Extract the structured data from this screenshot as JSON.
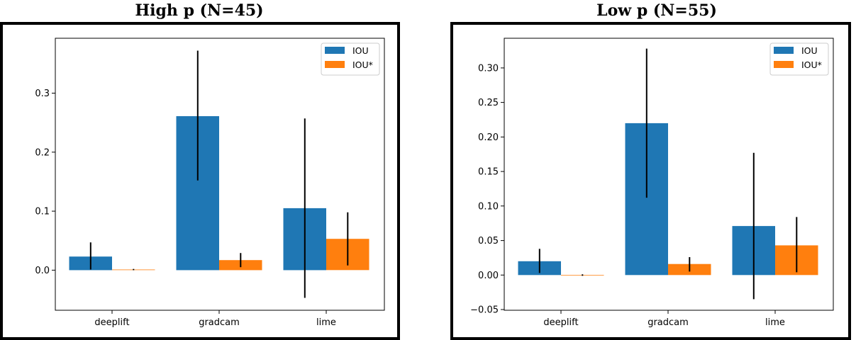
{
  "chart_data": [
    {
      "type": "bar",
      "title": "High p (N=45)",
      "xlabel": "",
      "ylabel": "",
      "categories": [
        "deeplift",
        "gradcam",
        "lime"
      ],
      "series": [
        {
          "name": "IOU",
          "color": "#1f77b4",
          "values": [
            0.023,
            0.261,
            0.105
          ],
          "err_low": [
            0.001,
            0.152,
            -0.047
          ],
          "err_high": [
            0.047,
            0.372,
            0.257
          ]
        },
        {
          "name": "IOU*",
          "color": "#ff7f0e",
          "values": [
            0.001,
            0.017,
            0.053
          ],
          "err_low": [
            0.0,
            0.005,
            0.008
          ],
          "err_high": [
            0.002,
            0.029,
            0.098
          ]
        }
      ],
      "ylim": [
        -0.068,
        0.393
      ],
      "yticks": [
        0.0,
        0.1,
        0.2,
        0.3
      ],
      "ytick_labels": [
        "0.0",
        "0.1",
        "0.2",
        "0.3"
      ],
      "grid": false,
      "legend": "top-right"
    },
    {
      "type": "bar",
      "title": "Low p (N=55)",
      "xlabel": "",
      "ylabel": "",
      "categories": [
        "deeplift",
        "gradcam",
        "lime"
      ],
      "series": [
        {
          "name": "IOU",
          "color": "#1f77b4",
          "values": [
            0.02,
            0.22,
            0.071
          ],
          "err_low": [
            0.003,
            0.112,
            -0.035
          ],
          "err_high": [
            0.038,
            0.328,
            0.177
          ]
        },
        {
          "name": "IOU*",
          "color": "#ff7f0e",
          "values": [
            0.0,
            0.016,
            0.043
          ],
          "err_low": [
            -0.001,
            0.005,
            0.004
          ],
          "err_high": [
            0.001,
            0.026,
            0.084
          ]
        }
      ],
      "ylim": [
        -0.051,
        0.343
      ],
      "yticks": [
        -0.05,
        0.0,
        0.05,
        0.1,
        0.15,
        0.2,
        0.25,
        0.3
      ],
      "ytick_labels": [
        "−0.05",
        "0.00",
        "0.05",
        "0.10",
        "0.15",
        "0.20",
        "0.25",
        "0.30"
      ],
      "grid": false,
      "legend": "top-right"
    }
  ]
}
